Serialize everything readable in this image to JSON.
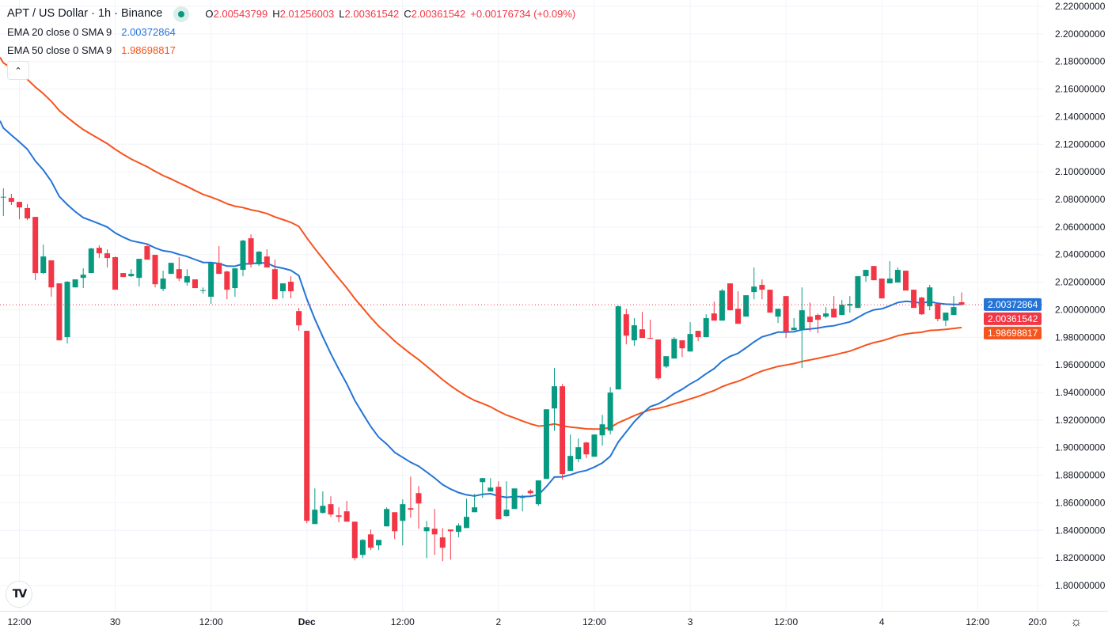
{
  "header": {
    "title": "APT / US Dollar · 1h · Binance",
    "ohlc": {
      "o_label": "O",
      "o": "2.00543799",
      "h_label": "H",
      "h": "2.01256003",
      "l_label": "L",
      "l": "2.00361542",
      "c_label": "C",
      "c": "2.00361542",
      "change": "+0.00176734 (+0.09%)"
    }
  },
  "indicators": [
    {
      "name": "EMA 20 close 0 SMA 9",
      "value": "2.00372864",
      "color": "#2474d8"
    },
    {
      "name": "EMA 50 close 0 SMA 9",
      "value": "1.98698817",
      "color": "#f7531d"
    }
  ],
  "colors": {
    "up": "#089981",
    "down": "#f23645",
    "grid": "#f0f3fa",
    "text": "#131722"
  },
  "icons": {
    "collapse": "chevron-up-icon",
    "logo": "tradingview-logo",
    "settings": "gear-icon"
  },
  "logo_text": "TV",
  "collapse_glyph": "⌃",
  "settings_glyph": "☼",
  "chart_data": {
    "type": "candlestick",
    "symbol": "APT / US Dollar",
    "interval": "1h",
    "exchange": "Binance",
    "ylim": [
      1.79,
      2.225
    ],
    "y_ticks": [
      "2.22000000",
      "2.20000000",
      "2.18000000",
      "2.16000000",
      "2.14000000",
      "2.12000000",
      "2.10000000",
      "2.08000000",
      "2.06000000",
      "2.04000000",
      "2.02000000",
      "2.00000000",
      "1.98000000",
      "1.96000000",
      "1.94000000",
      "1.92000000",
      "1.90000000",
      "1.88000000",
      "1.86000000",
      "1.84000000",
      "1.82000000",
      "1.80000000"
    ],
    "x_ticks": [
      {
        "label": "12:00",
        "bar": 2
      },
      {
        "label": "30",
        "bar": 14
      },
      {
        "label": "12:00",
        "bar": 26
      },
      {
        "label": "Dec",
        "bar": 38,
        "bold": true
      },
      {
        "label": "12:00",
        "bar": 50
      },
      {
        "label": "2",
        "bar": 62
      },
      {
        "label": "12:00",
        "bar": 74
      },
      {
        "label": "3",
        "bar": 86
      },
      {
        "label": "12:00",
        "bar": 98
      },
      {
        "label": "4",
        "bar": 110
      },
      {
        "label": "12:00",
        "bar": 122
      },
      {
        "label": "20:0",
        "bar": 129.5
      }
    ],
    "last_price": "2.00361542",
    "ema20_last": "2.00372864",
    "ema50_last": "1.98698817",
    "ema_seed": {
      "ema20": 2.137,
      "ema50": 2.183
    },
    "candles_ohlc": [
      [
        2.0817,
        2.088,
        2.0679,
        2.0819
      ],
      [
        2.0811,
        2.084,
        2.076,
        2.0782
      ],
      [
        2.0782,
        2.0782,
        2.0656,
        2.0742
      ],
      [
        2.0737,
        2.0765,
        2.065,
        2.0662
      ],
      [
        2.0673,
        2.0673,
        2.0214,
        2.0266
      ],
      [
        2.0266,
        2.0472,
        2.026,
        2.0386
      ],
      [
        2.0358,
        2.0358,
        2.0094,
        2.0162
      ],
      [
        2.0191,
        2.0191,
        1.9778,
        1.9778
      ],
      [
        1.9801,
        2.0208,
        1.9755,
        2.0203
      ],
      [
        2.0162,
        2.022,
        2.0162,
        2.022
      ],
      [
        2.0231,
        2.03,
        2.0157,
        2.0254
      ],
      [
        2.0266,
        2.0449,
        2.0266,
        2.0444
      ],
      [
        2.0449,
        2.0467,
        2.0375,
        2.0409
      ],
      [
        2.0409,
        2.0438,
        2.0306,
        2.0375
      ],
      [
        2.0381,
        2.0386,
        2.0145,
        2.0145
      ],
      [
        2.0266,
        2.0266,
        2.0237,
        2.0237
      ],
      [
        2.0243,
        2.0294,
        2.0237,
        2.026
      ],
      [
        2.0231,
        2.0369,
        2.0168,
        2.0369
      ],
      [
        2.0461,
        2.0478,
        2.0363,
        2.0363
      ],
      [
        2.0398,
        2.0398,
        2.0162,
        2.0185
      ],
      [
        2.0151,
        2.0283,
        2.0134,
        2.0226
      ],
      [
        2.026,
        2.034,
        2.026,
        2.034
      ],
      [
        2.0294,
        2.0381,
        2.0208,
        2.0226
      ],
      [
        2.0197,
        2.0294,
        2.0174,
        2.0243
      ],
      [
        2.022,
        2.022,
        2.0157,
        2.0157
      ],
      [
        2.0139,
        2.0162,
        2.0117,
        2.0142
      ],
      [
        2.0094,
        2.034,
        2.0042,
        2.034
      ],
      [
        2.034,
        2.0461,
        2.026,
        2.026
      ],
      [
        2.0277,
        2.0283,
        2.0076,
        2.0145
      ],
      [
        2.0157,
        2.03,
        2.0094,
        2.03
      ],
      [
        2.0289,
        2.0507,
        2.0243,
        2.0501
      ],
      [
        2.0518,
        2.0547,
        2.0306,
        2.0329
      ],
      [
        2.0329,
        2.0426,
        2.0317,
        2.0421
      ],
      [
        2.0386,
        2.0438,
        2.0306,
        2.0306
      ],
      [
        2.0294,
        2.0363,
        2.0076,
        2.0076
      ],
      [
        2.0134,
        2.0191,
        2.0082,
        2.0191
      ],
      [
        2.0203,
        2.0243,
        2.0082,
        2.0134
      ],
      [
        1.999,
        2.0013,
        1.9847,
        1.9887
      ],
      [
        1.9847,
        1.9847,
        1.8452,
        1.8469
      ],
      [
        1.8446,
        1.8704,
        1.8446,
        1.855
      ],
      [
        1.8527,
        1.8682,
        1.8521,
        1.8578
      ],
      [
        1.859,
        1.8647,
        1.8498,
        1.8515
      ],
      [
        1.8509,
        1.8567,
        1.8458,
        1.8498
      ],
      [
        1.8538,
        1.8613,
        1.8463,
        1.8463
      ],
      [
        1.8463,
        1.8463,
        1.8182,
        1.8199
      ],
      [
        1.8222,
        1.8337,
        1.8199,
        1.8331
      ],
      [
        1.8371,
        1.8406,
        1.8257,
        1.8274
      ],
      [
        1.8291,
        1.8331,
        1.8257,
        1.8331
      ],
      [
        1.8429,
        1.8567,
        1.8429,
        1.8555
      ],
      [
        1.8532,
        1.8532,
        1.8337,
        1.8394
      ],
      [
        1.8469,
        1.8624,
        1.8291,
        1.859
      ],
      [
        1.8561,
        1.879,
        1.8492,
        1.855
      ],
      [
        1.867,
        1.8722,
        1.8412,
        1.8595
      ],
      [
        1.8394,
        1.8469,
        1.8199,
        1.8423
      ],
      [
        1.8412,
        1.8555,
        1.8222,
        1.8371
      ],
      [
        1.8349,
        1.8417,
        1.8176,
        1.8274
      ],
      [
        1.8406,
        1.8406,
        1.8188,
        1.8394
      ],
      [
        1.8389,
        1.8452,
        1.8349,
        1.8435
      ],
      [
        1.8417,
        1.863,
        1.8417,
        1.8498
      ],
      [
        1.8532,
        1.8664,
        1.8532,
        1.8567
      ],
      [
        1.875,
        1.8779,
        1.8636,
        1.8779
      ],
      [
        1.8682,
        1.8779,
        1.8682,
        1.871
      ],
      [
        1.8716,
        1.8756,
        1.8481,
        1.8481
      ],
      [
        1.8504,
        1.8756,
        1.8498,
        1.855
      ],
      [
        1.8555,
        1.8704,
        1.8555,
        1.8704
      ],
      [
        1.8636,
        1.8658,
        1.8538,
        1.8641
      ],
      [
        1.8687,
        1.8699,
        1.8658,
        1.867
      ],
      [
        1.859,
        1.8762,
        1.8578,
        1.8762
      ],
      [
        1.8773,
        1.9278,
        1.8773,
        1.9278
      ],
      [
        1.9284,
        1.9577,
        1.9123,
        1.9445
      ],
      [
        1.9445,
        1.9462,
        1.8768,
        1.8808
      ],
      [
        1.8831,
        1.9095,
        1.8831,
        1.894
      ],
      [
        1.8917,
        1.9066,
        1.8894,
        1.9003
      ],
      [
        1.9037,
        1.9043,
        1.8923,
        1.8951
      ],
      [
        1.8934,
        1.9095,
        1.8934,
        1.9095
      ],
      [
        1.9089,
        1.9238,
        1.9014,
        1.9169
      ],
      [
        1.9123,
        1.9439,
        1.9095,
        1.9399
      ],
      [
        1.9422,
        2.003,
        1.9422,
        2.0025
      ],
      [
        1.9967,
        2.0007,
        1.9749,
        1.9812
      ],
      [
        1.9778,
        1.9939,
        1.9738,
        1.9887
      ],
      [
        1.9858,
        1.9984,
        1.9795,
        1.9795
      ],
      [
        1.9795,
        1.9927,
        1.9789,
        1.9789
      ],
      [
        1.9784,
        1.9784,
        1.9491,
        1.9502
      ],
      [
        1.9588,
        1.9663,
        1.9577,
        1.9663
      ],
      [
        1.9646,
        1.9801,
        1.9646,
        1.9789
      ],
      [
        1.9778,
        1.9778,
        1.9657,
        1.972
      ],
      [
        1.9697,
        1.991,
        1.9697,
        1.9824
      ],
      [
        1.9847,
        1.9847,
        1.9772,
        1.9801
      ],
      [
        1.9801,
        1.9967,
        1.9801,
        1.9939
      ],
      [
        1.9973,
        2.0059,
        1.9921,
        1.9921
      ],
      [
        1.9921,
        2.0151,
        1.9921,
        2.0139
      ],
      [
        2.0191,
        2.0191,
        1.9996,
        1.9996
      ],
      [
        2.0007,
        2.0134,
        1.9898,
        1.9898
      ],
      [
        1.995,
        2.0105,
        1.995,
        2.0105
      ],
      [
        2.0128,
        2.0306,
        2.0076,
        2.0168
      ],
      [
        2.018,
        2.022,
        2.0076,
        2.0145
      ],
      [
        2.0145,
        2.0145,
        1.9979,
        1.9979
      ],
      [
        1.995,
        2.0007,
        1.9904,
        2.0007
      ],
      [
        2.0099,
        2.0099,
        1.9795,
        1.9841
      ],
      [
        1.9852,
        1.9939,
        1.9852,
        1.987
      ],
      [
        1.9858,
        2.0162,
        1.9577,
        1.9996
      ],
      [
        1.995,
        2.0053,
        1.9841,
        1.991
      ],
      [
        1.9962,
        1.9973,
        1.983,
        1.9927
      ],
      [
        1.995,
        2.0019,
        1.9939,
        1.9973
      ],
      [
        2.0007,
        2.0099,
        1.9944,
        1.9944
      ],
      [
        1.9962,
        2.0071,
        1.9962,
        2.0036
      ],
      [
        2.003,
        2.0099,
        1.9979,
        2.0042
      ],
      [
        2.0013,
        2.0243,
        2.0013,
        2.0243
      ],
      [
        2.0243,
        2.0289,
        2.0203,
        2.0289
      ],
      [
        2.0317,
        2.0317,
        2.0214,
        2.0214
      ],
      [
        2.0226,
        2.0226,
        2.0082,
        2.0082
      ],
      [
        2.0191,
        2.0352,
        2.0191,
        2.0226
      ],
      [
        2.0197,
        2.0306,
        2.0197,
        2.0289
      ],
      [
        2.0283,
        2.0283,
        2.0139,
        2.0139
      ],
      [
        2.0145,
        2.0145,
        2.0013,
        2.0013
      ],
      [
        2.0088,
        2.0094,
        1.9962,
        1.9967
      ],
      [
        2.0025,
        2.018,
        1.9996,
        2.0162
      ],
      [
        2.0042,
        2.0042,
        1.9916,
        1.9933
      ],
      [
        1.9921,
        1.9979,
        1.9881,
        1.9979
      ],
      [
        1.9962,
        2.0099,
        1.9962,
        2.0019
      ],
      [
        2.00543799,
        2.01256003,
        2.00361542,
        2.00361542
      ]
    ]
  }
}
